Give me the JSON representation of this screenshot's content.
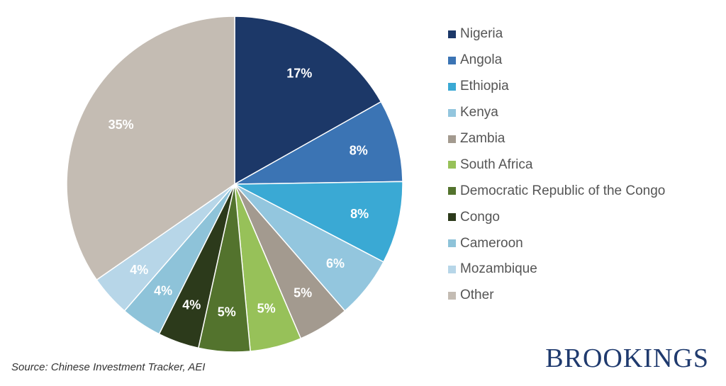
{
  "chart_data": {
    "type": "pie",
    "slices": [
      {
        "label": "Nigeria",
        "value": 17,
        "display": "17%",
        "color": "#1c3868"
      },
      {
        "label": "Angola",
        "value": 8,
        "display": "8%",
        "color": "#3b74b4"
      },
      {
        "label": "Ethiopia",
        "value": 8,
        "display": "8%",
        "color": "#3aa9d4"
      },
      {
        "label": "Kenya",
        "value": 6,
        "display": "6%",
        "color": "#93c6de"
      },
      {
        "label": "Zambia",
        "value": 5,
        "display": "5%",
        "color": "#a39a8f"
      },
      {
        "label": "South Africa",
        "value": 5,
        "display": "5%",
        "color": "#97c159"
      },
      {
        "label": "Democratic Republic of the Congo",
        "value": 5,
        "display": "5%",
        "color": "#53732d"
      },
      {
        "label": "Congo",
        "value": 4,
        "display": "4%",
        "color": "#2c3a1b"
      },
      {
        "label": "Cameroon",
        "value": 4,
        "display": "4%",
        "color": "#8ec3d9"
      },
      {
        "label": "Mozambique",
        "value": 4,
        "display": "4%",
        "color": "#b7d6e8"
      },
      {
        "label": "Other",
        "value": 35,
        "display": "35%",
        "color": "#c4bcb3"
      }
    ],
    "legend_position": "right"
  },
  "source": "Source: Chinese Investment Tracker, AEI",
  "logo_text": "BROOKINGS"
}
